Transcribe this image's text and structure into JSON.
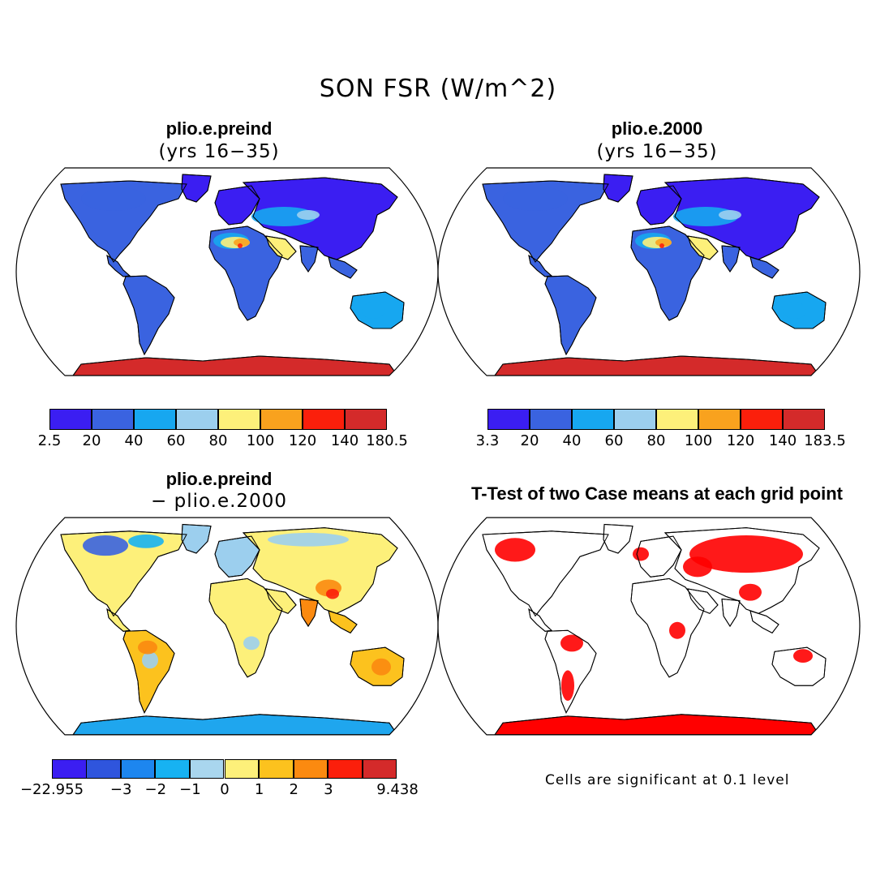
{
  "figure": {
    "title": "SON FSR (W/m^2)"
  },
  "panels": [
    {
      "id": "preind",
      "title": "plio.e.preind",
      "subtitle": "(yrs 16−35)",
      "style": "mean",
      "antarctica_color": "#d42a2a"
    },
    {
      "id": "y2000",
      "title": "plio.e.2000",
      "subtitle": "(yrs 16−35)",
      "style": "mean",
      "antarctica_color": "#d42a2a"
    },
    {
      "id": "diff",
      "title": "plio.e.preind",
      "subtitle": "− plio.e.2000",
      "style": "diff",
      "antarctica_color": "#1fa6ee"
    },
    {
      "id": "ttest",
      "title": "T-Test of two Case means at each grid point",
      "subtitle": "",
      "style": "ttest",
      "antarctica_color": "#ff0000"
    }
  ],
  "colorbars": [
    {
      "id": "cb-preind",
      "colors": [
        "#3b1ef2",
        "#3a63e0",
        "#17a7f0",
        "#9ccfee",
        "#fdf07a",
        "#f9a21e",
        "#fb1f0b",
        "#d42a2a"
      ],
      "labels": [
        "2.5",
        "20",
        "40",
        "60",
        "80",
        "100",
        "120",
        "140",
        "180.5"
      ]
    },
    {
      "id": "cb-2000",
      "colors": [
        "#3b1ef2",
        "#3a63e0",
        "#17a7f0",
        "#9ccfee",
        "#fdf07a",
        "#f9a21e",
        "#fb1f0b",
        "#d42a2a"
      ],
      "labels": [
        "3.3",
        "20",
        "40",
        "60",
        "80",
        "100",
        "120",
        "140",
        "183.5"
      ]
    },
    {
      "id": "cb-diff",
      "colors": [
        "#3b1ef2",
        "#2f55dd",
        "#1d86ef",
        "#17b2f2",
        "#a9d6ee",
        "#fdf07a",
        "#fcc21e",
        "#fb8a10",
        "#fb1f0b",
        "#d42a2a"
      ],
      "labels": [
        "−22.955",
        "−3",
        "−2",
        "−1",
        "0",
        "1",
        "2",
        "3",
        "9.438"
      ]
    }
  ],
  "ttest_note": "Cells are significant at 0.1 level"
}
